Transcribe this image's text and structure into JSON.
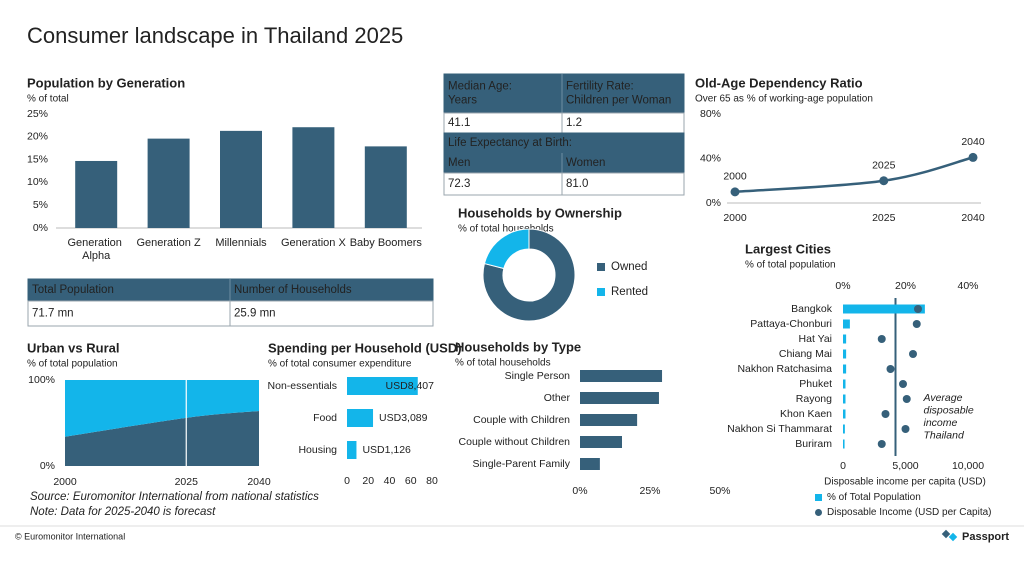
{
  "title": "Consumer landscape in Thailand 2025",
  "demographics_table": {
    "rows": [
      [
        "Median Age: Years",
        "Fertility Rate: Children per Woman"
      ],
      [
        "41.1",
        "1.2"
      ],
      [
        "Life Expectancy at Birth:"
      ],
      [
        "Men",
        "Women"
      ],
      [
        "72.3",
        "81.0"
      ]
    ]
  },
  "population_table": {
    "rows": [
      [
        "Total Population",
        "Number of Households"
      ],
      [
        "71.7 mn",
        "25.9 mn"
      ]
    ]
  },
  "source": "Source: Euromonitor International from national statistics",
  "note": "Note: Data for 2025-2040 is forecast",
  "copyright": "© Euromonitor International",
  "brand": "Passport",
  "chart_data": [
    {
      "type": "bar",
      "title": "Population by Generation",
      "subtitle": "% of total",
      "categories": [
        "Generation Alpha",
        "Generation Z",
        "Millennials",
        "Generation X",
        "Baby Boomers"
      ],
      "values": [
        14.7,
        19.6,
        21.3,
        22.1,
        17.9
      ],
      "color": "#36607a",
      "ylim": [
        0,
        25
      ],
      "yticks": [
        {
          "value": 0,
          "label": "0%"
        },
        {
          "value": 5,
          "label": "5%"
        },
        {
          "value": 10,
          "label": "10%"
        },
        {
          "value": 15,
          "label": "15%"
        },
        {
          "value": 20,
          "label": "20%"
        },
        {
          "value": 25,
          "label": "25%"
        }
      ]
    },
    {
      "type": "line",
      "title": "Old-Age Dependency Ratio",
      "subtitle": "Over 65 as % of working-age population",
      "x": [
        2000,
        2025,
        2040
      ],
      "values": [
        10,
        20,
        41
      ],
      "color": "#36607a",
      "xlim": [
        2000,
        2040
      ],
      "xticks": [
        2000,
        2025,
        2040
      ],
      "ylim": [
        0,
        80
      ],
      "yticks": [
        {
          "value": 0,
          "label": "0%"
        },
        {
          "value": 40,
          "label": "40%"
        },
        {
          "value": 80,
          "label": "80%"
        }
      ]
    },
    {
      "type": "donut",
      "title": "Households by Ownership",
      "subtitle": "% of total households",
      "categories": [
        "Owned",
        "Rented"
      ],
      "values": [
        79,
        21
      ],
      "colors": [
        "#36607a",
        "#13b5ea"
      ]
    },
    {
      "type": "area",
      "title": "Urban vs Rural",
      "subtitle": "% of total population",
      "x": [
        2000,
        2025,
        2040
      ],
      "series": [
        {
          "color": "#36607a",
          "values": [
            34,
            56,
            64
          ]
        },
        {
          "color": "#13b5ea",
          "values": [
            66,
            44,
            36
          ]
        }
      ],
      "xlim": [
        2000,
        2040
      ],
      "xticks": [
        2000,
        2025,
        2040
      ],
      "divider_x": 2025,
      "ylim": [
        0,
        100
      ],
      "yticks": [
        {
          "value": 0,
          "label": "0%"
        },
        {
          "value": 100,
          "label": "100%"
        }
      ]
    },
    {
      "type": "barh",
      "title": "Spending per Household (USD)",
      "subtitle": "% of total consumer expenditure",
      "categories": [
        "Non-essentials",
        "Food",
        "Housing"
      ],
      "values": [
        66.6,
        24.5,
        8.9
      ],
      "amount_labels": [
        "USD8,407",
        "USD3,089",
        "USD1,126"
      ],
      "color": "#13b5ea",
      "xlim": [
        0,
        80
      ],
      "xticks": [
        0,
        20,
        40,
        60,
        80
      ]
    },
    {
      "type": "barh",
      "title": "Households by Type",
      "subtitle": "% of total households",
      "categories": [
        "Single Person",
        "Other",
        "Couple with Children",
        "Couple without Children",
        "Single-Parent Family"
      ],
      "values": [
        29.3,
        28.2,
        20.4,
        15.0,
        7.1
      ],
      "color": "#36607a",
      "xlim": [
        0,
        50
      ],
      "xticks": [
        {
          "value": 0,
          "label": "0%"
        },
        {
          "value": 25,
          "label": "25%"
        },
        {
          "value": 50,
          "label": "50%"
        }
      ]
    },
    {
      "type": "combo",
      "title": "Largest Cities",
      "subtitle": "% of total population",
      "xlabel": "Disposable income per capita (USD)",
      "categories": [
        "Bangkok",
        "Pattaya-Chonburi",
        "Hat Yai",
        "Chiang Mai",
        "Nakhon Ratchasima",
        "Phuket",
        "Rayong",
        "Khon Kaen",
        "Nakhon Si Thammarat",
        "Buriram"
      ],
      "series": [
        {
          "name": "% of Total Population",
          "color": "#13b5ea",
          "values": [
            26.2,
            2.2,
            1.0,
            1.0,
            1.0,
            0.8,
            0.8,
            0.8,
            0.6,
            0.5
          ]
        },
        {
          "name": "Disposable Income (USD per Capita)",
          "color": "#36607a",
          "axis": "x2",
          "values": [
            6000,
            5900,
            3100,
            5600,
            3800,
            4800,
            5100,
            3400,
            5000,
            3100
          ]
        }
      ],
      "xlim": [
        0,
        40
      ],
      "xticks": [
        {
          "value": 0,
          "label": "0%"
        },
        {
          "value": 20,
          "label": "20%"
        },
        {
          "value": 40,
          "label": "40%"
        }
      ],
      "x2lim": [
        0,
        10000
      ],
      "x2ticks": [
        0,
        {
          "value": 5000,
          "label": "5,000"
        },
        {
          "value": 10000,
          "label": "10,000"
        }
      ],
      "reference_line": {
        "value": 4200,
        "label": "Average disposable income Thailand"
      }
    }
  ]
}
